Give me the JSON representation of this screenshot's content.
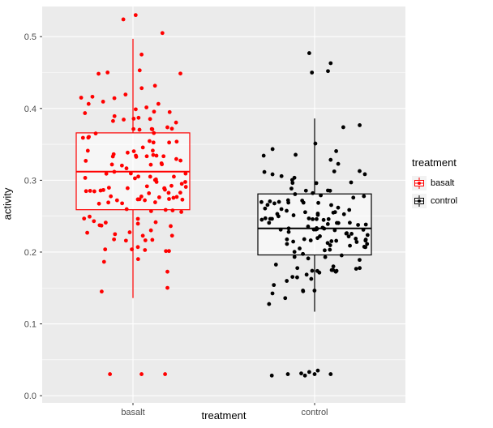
{
  "chart_data": {
    "type": "boxplot-jitter",
    "title": "",
    "xlabel": "treatment",
    "ylabel": "activity",
    "ylim": [
      -0.01,
      0.542
    ],
    "yticks": [
      0.0,
      0.1,
      0.2,
      0.3,
      0.4,
      0.5
    ],
    "ytick_labels": [
      "0.0",
      "0.1",
      "0.2",
      "0.3",
      "0.4",
      "0.5"
    ],
    "categories": [
      "basalt",
      "control"
    ],
    "panel_bg": "#EBEBEB",
    "grid_major_color": "#FFFFFF",
    "grid_minor_color": "#FFFFFF",
    "tick_color": "#333333",
    "tick_label_color": "#4D4D4D",
    "legend": {
      "title": "treatment",
      "entries": [
        {
          "label": "basalt",
          "color": "#FF0000"
        },
        {
          "label": "control",
          "color": "#000000"
        }
      ]
    },
    "series": [
      {
        "name": "basalt",
        "color": "#FF0000",
        "box": {
          "lower_whisker": 0.136,
          "q1": 0.259,
          "median": 0.312,
          "q3": 0.366,
          "upper_whisker": 0.497
        },
        "jitter": {
          "n": 144,
          "mean": 0.305,
          "sd": 0.072,
          "min": 0.133,
          "max": 0.5,
          "seed": 42
        },
        "extra_points": [
          [
            0.03,
            -0.43
          ],
          [
            0.03,
            0.16
          ],
          [
            0.03,
            0.6
          ],
          [
            0.53,
            0.05
          ],
          [
            0.524,
            -0.18
          ],
          [
            0.505,
            0.55
          ]
        ]
      },
      {
        "name": "control",
        "color": "#000000",
        "box": {
          "lower_whisker": 0.117,
          "q1": 0.196,
          "median": 0.233,
          "q3": 0.281,
          "upper_whisker": 0.386
        },
        "jitter": {
          "n": 140,
          "mean": 0.236,
          "sd": 0.058,
          "min": 0.117,
          "max": 0.39,
          "seed": 7
        },
        "extra_points": [
          [
            0.028,
            -0.8
          ],
          [
            0.03,
            -0.5
          ],
          [
            0.031,
            -0.25
          ],
          [
            0.028,
            -0.18
          ],
          [
            0.033,
            -0.1
          ],
          [
            0.03,
            0.0
          ],
          [
            0.035,
            0.06
          ],
          [
            0.03,
            0.3
          ],
          [
            0.477,
            -0.1
          ],
          [
            0.463,
            0.3
          ],
          [
            0.452,
            0.25
          ],
          [
            0.45,
            -0.05
          ]
        ]
      }
    ]
  }
}
